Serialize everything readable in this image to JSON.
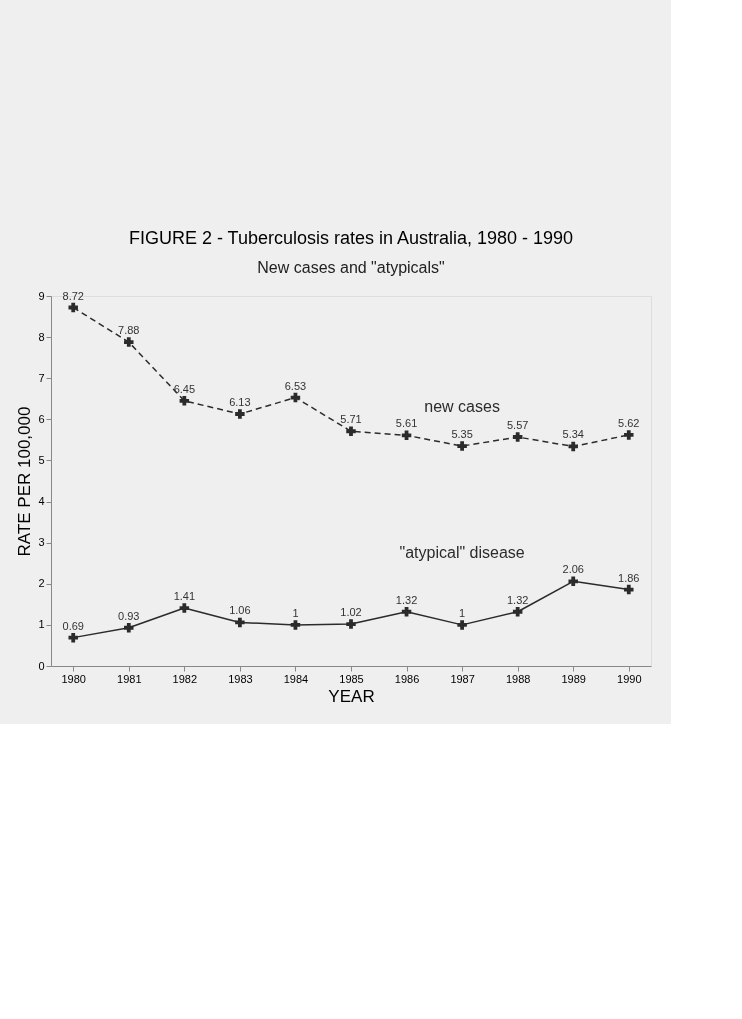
{
  "chart_data": {
    "type": "line",
    "title": "FIGURE 2 - Tuberculosis rates in Australia, 1980 - 1990",
    "subtitle": "New cases and \"atypicals\"",
    "xlabel": "YEAR",
    "ylabel": "RATE PER 100,000",
    "categories": [
      "1980",
      "1981",
      "1982",
      "1983",
      "1984",
      "1985",
      "1986",
      "1987",
      "1988",
      "1989",
      "1990"
    ],
    "series": [
      {
        "name": "new cases",
        "color": "#2b2b2b",
        "line_style": "dashed",
        "values": [
          8.72,
          7.88,
          6.45,
          6.13,
          6.53,
          5.71,
          5.61,
          5.35,
          5.57,
          5.34,
          5.62
        ]
      },
      {
        "name": "\"atypical\" disease",
        "color": "#2b2b2b",
        "line_style": "solid",
        "values": [
          0.69,
          0.93,
          1.41,
          1.06,
          1,
          1.02,
          1.32,
          1,
          1.32,
          2.06,
          1.86
        ]
      }
    ],
    "ylim": [
      0,
      9
    ],
    "yticks": [
      0,
      1,
      2,
      3,
      4,
      5,
      6,
      7,
      8,
      9
    ],
    "grid": false,
    "marker": "cross",
    "data_labels": true
  }
}
